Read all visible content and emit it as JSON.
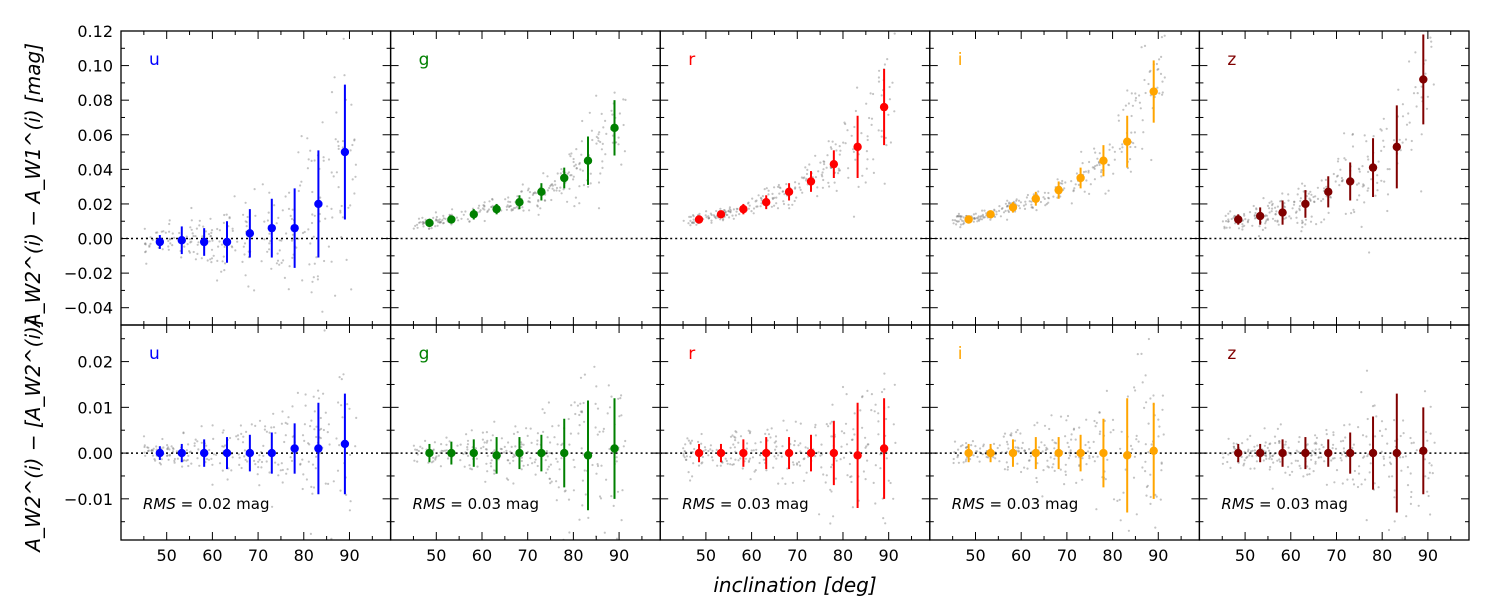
{
  "chart_data": {
    "type": "scatter",
    "xlabel": "inclination [deg]",
    "xlim": [
      40,
      99
    ],
    "xticks": [
      50,
      60,
      70,
      80,
      90
    ],
    "bin_centers": [
      48.5,
      53.3,
      58.2,
      63.2,
      68.2,
      73.0,
      78.0,
      83.2,
      89.0
    ],
    "top": {
      "ylabel": "A_W2^(i) − A_W1^(i)  [mag]",
      "ylim": [
        -0.05,
        0.12
      ],
      "yticks": [
        "−0.04",
        "−0.02",
        "0.00",
        "0.02",
        "0.04",
        "0.06",
        "0.08",
        "0.10",
        "0.12"
      ],
      "ytick_values": [
        -0.04,
        -0.02,
        0.0,
        0.02,
        0.04,
        0.06,
        0.08,
        0.1,
        0.12
      ]
    },
    "bottom": {
      "ylabel": "A_W2^(i) − [A_W2^(i)]",
      "ylim": [
        -0.019,
        0.028
      ],
      "yticks": [
        "−0.01",
        "0.00",
        "0.01",
        "0.02"
      ],
      "ytick_values": [
        -0.01,
        0.0,
        0.01,
        0.02
      ]
    },
    "panels": [
      {
        "band": "u",
        "color": "#0000ff",
        "rms": "= 0.02 mag",
        "top_values": [
          -0.002,
          -0.001,
          -0.002,
          -0.002,
          0.003,
          0.006,
          0.006,
          0.02,
          0.05
        ],
        "top_errors": [
          0.004,
          0.008,
          0.008,
          0.012,
          0.014,
          0.017,
          0.023,
          0.031,
          0.039
        ],
        "bottom_values": [
          0.0,
          0.0,
          0.0,
          0.0,
          0.0,
          0.0,
          0.001,
          0.001,
          0.002
        ],
        "bottom_errors": [
          0.0015,
          0.002,
          0.003,
          0.0035,
          0.004,
          0.0045,
          0.0055,
          0.01,
          0.011
        ]
      },
      {
        "band": "g",
        "color": "#008000",
        "rms": "= 0.03 mag",
        "top_values": [
          0.009,
          0.011,
          0.014,
          0.017,
          0.021,
          0.027,
          0.035,
          0.045,
          0.064
        ],
        "top_errors": [
          0.002,
          0.002,
          0.003,
          0.003,
          0.004,
          0.005,
          0.006,
          0.014,
          0.016
        ],
        "bottom_values": [
          0.0,
          0.0,
          0.0,
          -0.0005,
          0.0,
          0.0,
          0.0,
          -0.0005,
          0.001
        ],
        "bottom_errors": [
          0.002,
          0.0025,
          0.003,
          0.004,
          0.0035,
          0.004,
          0.0075,
          0.012,
          0.011
        ]
      },
      {
        "band": "r",
        "color": "#ff0000",
        "rms": "= 0.03 mag",
        "top_values": [
          0.011,
          0.014,
          0.017,
          0.021,
          0.027,
          0.033,
          0.043,
          0.053,
          0.076
        ],
        "top_errors": [
          0.002,
          0.002,
          0.003,
          0.004,
          0.005,
          0.006,
          0.008,
          0.018,
          0.022
        ],
        "bottom_values": [
          0.0,
          0.0,
          0.0,
          0.0,
          0.0,
          0.0,
          0.0,
          -0.0005,
          0.001
        ],
        "bottom_errors": [
          0.002,
          0.002,
          0.003,
          0.0035,
          0.0035,
          0.004,
          0.007,
          0.0115,
          0.011
        ]
      },
      {
        "band": "i",
        "color": "#ffa500",
        "rms": "= 0.03 mag",
        "top_values": [
          0.011,
          0.014,
          0.018,
          0.023,
          0.028,
          0.035,
          0.045,
          0.056,
          0.085
        ],
        "top_errors": [
          0.002,
          0.002,
          0.003,
          0.004,
          0.005,
          0.006,
          0.009,
          0.015,
          0.018
        ],
        "bottom_values": [
          0.0,
          0.0,
          0.0,
          0.0,
          0.0,
          0.0,
          0.0,
          -0.0005,
          0.0005
        ],
        "bottom_errors": [
          0.002,
          0.002,
          0.003,
          0.0035,
          0.0035,
          0.004,
          0.0075,
          0.0125,
          0.0105
        ]
      },
      {
        "band": "z",
        "color": "#800000",
        "rms": "= 0.03 mag",
        "top_values": [
          0.011,
          0.013,
          0.015,
          0.02,
          0.027,
          0.033,
          0.041,
          0.053,
          0.092
        ],
        "top_errors": [
          0.003,
          0.005,
          0.007,
          0.008,
          0.009,
          0.011,
          0.017,
          0.024,
          0.026
        ],
        "bottom_values": [
          0.0,
          0.0,
          0.0,
          0.0,
          0.0,
          0.0,
          0.0,
          0.0,
          0.0005
        ],
        "bottom_errors": [
          0.002,
          0.002,
          0.003,
          0.0035,
          0.003,
          0.0045,
          0.008,
          0.013,
          0.0095
        ]
      }
    ]
  }
}
